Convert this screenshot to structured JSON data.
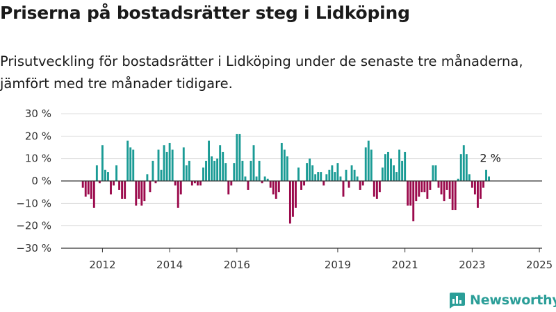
{
  "title": "Priserna på bostadsrätter steg i Lidköping",
  "subtitle": "Prisutveckling för bostadsrätter i Lidköping under de senaste tre månaderna, jämfört med tre månader tidigare.",
  "brand": {
    "name": "Newsworthy",
    "logo_icon": "bar-chart-icon",
    "color": "#2b9e98"
  },
  "colors": {
    "positive": "#1a9b95",
    "negative": "#9b0a4c",
    "grid": "#dddddd",
    "axis": "#333333"
  },
  "chart_data": {
    "type": "bar",
    "ylim": [
      -30,
      30
    ],
    "yticks": [
      {
        "value": 30,
        "label": "30 %"
      },
      {
        "value": 20,
        "label": "20 %"
      },
      {
        "value": 10,
        "label": "10 %"
      },
      {
        "value": 0,
        "label": "0 %"
      },
      {
        "value": -10,
        "label": "−10 %"
      },
      {
        "value": -20,
        "label": "−20 %"
      },
      {
        "value": -30,
        "label": "−30 %"
      }
    ],
    "x_start": "2011-06",
    "xticks": [
      {
        "month": "2012-01",
        "label": "2012"
      },
      {
        "month": "2014-01",
        "label": "2014"
      },
      {
        "month": "2016-01",
        "label": "2016"
      },
      {
        "month": "2019-01",
        "label": "2019"
      },
      {
        "month": "2021-01",
        "label": "2021"
      },
      {
        "month": "2023-01",
        "label": "2023"
      },
      {
        "month": "2025-01",
        "label": "2025"
      }
    ],
    "values": [
      -3,
      -7,
      -6,
      -8,
      -12,
      7,
      -1,
      16,
      5,
      4,
      -6,
      -2,
      7,
      -4,
      -8,
      -8,
      18,
      15,
      14,
      -11,
      -8,
      -11,
      -9,
      3,
      -5,
      9,
      -1,
      14,
      5,
      16,
      13,
      17,
      14,
      -2,
      -12,
      -6,
      15,
      7,
      9,
      -2,
      -1,
      -2,
      -2,
      6,
      9,
      18,
      11,
      9,
      10,
      16,
      13,
      8,
      -6,
      -2,
      8,
      21,
      21,
      9,
      2,
      -4,
      9,
      16,
      2,
      9,
      -1,
      2,
      1,
      -3,
      -6,
      -8,
      -5,
      17,
      14,
      11,
      -19,
      -16,
      -12,
      6,
      -4,
      -2,
      8,
      10,
      7,
      3,
      4,
      4,
      -2,
      3,
      5,
      7,
      4,
      8,
      2,
      -7,
      5,
      -3,
      7,
      5,
      2,
      -4,
      -2,
      15,
      18,
      14,
      -7,
      -8,
      -5,
      6,
      12,
      13,
      10,
      7,
      4,
      14,
      9,
      13,
      -11,
      -11,
      -18,
      -9,
      -7,
      -5,
      -5,
      -8,
      -4,
      7,
      7,
      -3,
      -6,
      -9,
      -4,
      -8,
      -13,
      -13,
      1,
      12,
      16,
      12,
      3,
      -3,
      -6,
      -12,
      -8,
      -3,
      5,
      2
    ],
    "annotation": {
      "text": "2 %",
      "value": 2
    }
  }
}
